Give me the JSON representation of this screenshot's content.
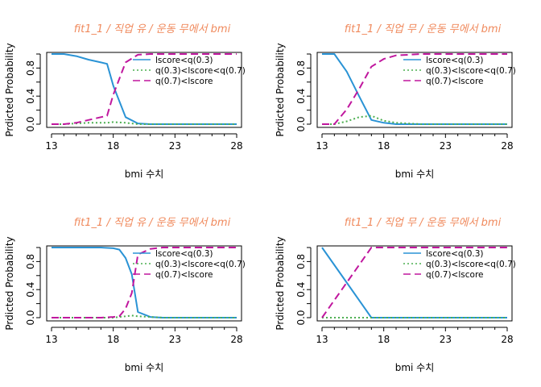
{
  "chart_data": [
    {
      "type": "line",
      "title": "fit1_1 / 직업 유 / 운동 무에서 bmi",
      "xlabel": "bmi 수치",
      "ylabel": "Prdicted  Probability",
      "xlim": [
        13,
        28
      ],
      "ylim": [
        0,
        1
      ],
      "xticks": [
        13,
        18,
        23,
        28
      ],
      "yticks": [
        0.0,
        0.4,
        0.8
      ],
      "legend_position": "top-right",
      "series": [
        {
          "name": "lscore<q(0.3)",
          "color": "#2a93d5",
          "dash": "solid",
          "x": [
            13,
            14,
            15,
            16,
            17,
            17.5,
            18,
            19,
            20,
            21,
            22,
            23,
            24,
            25,
            26,
            27,
            28
          ],
          "y": [
            1.0,
            1.0,
            0.97,
            0.92,
            0.88,
            0.86,
            0.55,
            0.1,
            0.01,
            0.0,
            0.0,
            0.0,
            0.0,
            0.0,
            0.0,
            0.0,
            0.0
          ]
        },
        {
          "name": "q(0.3)<lscore<q(0.7)",
          "color": "#4caf50",
          "dash": "dotted",
          "x": [
            13,
            14,
            15,
            16,
            17,
            17.5,
            18,
            19,
            20,
            21,
            22,
            23,
            24,
            25,
            26,
            27,
            28
          ],
          "y": [
            0.0,
            0.0,
            0.01,
            0.02,
            0.02,
            0.02,
            0.03,
            0.02,
            0.0,
            0.0,
            0.0,
            0.0,
            0.0,
            0.0,
            0.0,
            0.0,
            0.0
          ]
        },
        {
          "name": "q(0.7)<lscore",
          "color": "#c0179e",
          "dash": "dashed",
          "x": [
            13,
            14,
            15,
            16,
            17,
            17.5,
            18,
            19,
            20,
            21,
            22,
            23,
            24,
            25,
            26,
            27,
            28
          ],
          "y": [
            0.0,
            0.0,
            0.02,
            0.06,
            0.1,
            0.12,
            0.42,
            0.88,
            0.99,
            1.0,
            1.0,
            1.0,
            1.0,
            1.0,
            1.0,
            1.0,
            1.0
          ]
        }
      ]
    },
    {
      "type": "line",
      "title": "fit1_1 / 직업 무 / 운동 무에서 bmi",
      "xlabel": "bmi 수치",
      "ylabel": "Prdicted  Probability",
      "xlim": [
        13,
        28
      ],
      "ylim": [
        0,
        1
      ],
      "xticks": [
        13,
        18,
        23,
        28
      ],
      "yticks": [
        0.0,
        0.4,
        0.8
      ],
      "legend_position": "top-right",
      "series": [
        {
          "name": "lscore<q(0.3)",
          "color": "#2a93d5",
          "dash": "solid",
          "x": [
            13,
            14,
            15,
            16,
            17,
            18,
            19,
            20,
            21,
            22,
            23,
            24,
            25,
            26,
            27,
            28
          ],
          "y": [
            1.0,
            1.0,
            0.75,
            0.4,
            0.06,
            0.02,
            0.0,
            0.0,
            0.0,
            0.0,
            0.0,
            0.0,
            0.0,
            0.0,
            0.0,
            0.0
          ]
        },
        {
          "name": "q(0.3)<lscore<q(0.7)",
          "color": "#4caf50",
          "dash": "dotted",
          "x": [
            13,
            14,
            15,
            16,
            17,
            18,
            19,
            20,
            21,
            22,
            23,
            24,
            25,
            26,
            27,
            28
          ],
          "y": [
            0.0,
            0.0,
            0.04,
            0.1,
            0.12,
            0.05,
            0.02,
            0.01,
            0.0,
            0.0,
            0.0,
            0.0,
            0.0,
            0.0,
            0.0,
            0.0
          ]
        },
        {
          "name": "q(0.7)<lscore",
          "color": "#c0179e",
          "dash": "dashed",
          "x": [
            13,
            14,
            15,
            16,
            17,
            18,
            19,
            20,
            21,
            22,
            23,
            24,
            25,
            26,
            27,
            28
          ],
          "y": [
            0.0,
            0.0,
            0.21,
            0.5,
            0.82,
            0.93,
            0.98,
            0.99,
            1.0,
            1.0,
            1.0,
            1.0,
            1.0,
            1.0,
            1.0,
            1.0
          ]
        }
      ]
    },
    {
      "type": "line",
      "title": "fit1_1 / 직업 유 / 운동 무에서 bmi",
      "xlabel": "bmi 수치",
      "ylabel": "Prdicted  Probability",
      "xlim": [
        13,
        28
      ],
      "ylim": [
        0,
        1
      ],
      "xticks": [
        13,
        18,
        23,
        28
      ],
      "yticks": [
        0.0,
        0.4,
        0.8
      ],
      "legend_position": "top-right",
      "series": [
        {
          "name": "lscore<q(0.3)",
          "color": "#2a93d5",
          "dash": "solid",
          "x": [
            13,
            14,
            15,
            16,
            17,
            18,
            18.5,
            19,
            19.5,
            20,
            21,
            22,
            23,
            24,
            25,
            26,
            27,
            28
          ],
          "y": [
            1.0,
            1.0,
            1.0,
            1.0,
            1.0,
            0.99,
            0.97,
            0.85,
            0.62,
            0.08,
            0.01,
            0.0,
            0.0,
            0.0,
            0.0,
            0.0,
            0.0,
            0.0
          ]
        },
        {
          "name": "q(0.3)<lscore<q(0.7)",
          "color": "#4caf50",
          "dash": "dotted",
          "x": [
            13,
            14,
            15,
            16,
            17,
            18,
            18.5,
            19,
            19.5,
            20,
            21,
            22,
            23,
            24,
            25,
            26,
            27,
            28
          ],
          "y": [
            0.0,
            0.0,
            0.0,
            0.0,
            0.0,
            0.0,
            0.01,
            0.02,
            0.03,
            0.02,
            0.01,
            0.0,
            0.0,
            0.0,
            0.0,
            0.0,
            0.0,
            0.0
          ]
        },
        {
          "name": "q(0.7)<lscore",
          "color": "#c0179e",
          "dash": "dashed",
          "x": [
            13,
            14,
            15,
            16,
            17,
            18,
            18.5,
            19,
            19.5,
            20,
            21,
            22,
            23,
            24,
            25,
            26,
            27,
            28
          ],
          "y": [
            0.0,
            0.0,
            0.0,
            0.0,
            0.0,
            0.01,
            0.02,
            0.13,
            0.35,
            0.9,
            0.98,
            1.0,
            1.0,
            1.0,
            1.0,
            1.0,
            1.0,
            1.0
          ]
        }
      ]
    },
    {
      "type": "line",
      "title": "fit1_1 / 직업 무 / 운동 무에서 bmi",
      "xlabel": "bmi 수치",
      "ylabel": "Prdicted  Probability",
      "xlim": [
        13,
        28
      ],
      "ylim": [
        0,
        1
      ],
      "xticks": [
        13,
        18,
        23,
        28
      ],
      "yticks": [
        0.0,
        0.4,
        0.8
      ],
      "legend_position": "top-right",
      "series": [
        {
          "name": "lscore<q(0.3)",
          "color": "#2a93d5",
          "dash": "solid",
          "x": [
            13,
            15,
            17,
            18,
            19,
            20,
            21,
            22,
            23,
            24,
            25,
            26,
            27,
            28
          ],
          "y": [
            1.0,
            0.5,
            0.0,
            0.0,
            0.0,
            0.0,
            0.0,
            0.0,
            0.0,
            0.0,
            0.0,
            0.0,
            0.0,
            0.0
          ]
        },
        {
          "name": "q(0.3)<lscore<q(0.7)",
          "color": "#4caf50",
          "dash": "dotted",
          "x": [
            13,
            15,
            17,
            18,
            19,
            20,
            21,
            22,
            23,
            24,
            25,
            26,
            27,
            28
          ],
          "y": [
            0.0,
            0.0,
            0.0,
            0.0,
            0.0,
            0.0,
            0.0,
            0.0,
            0.0,
            0.0,
            0.0,
            0.0,
            0.0,
            0.0
          ]
        },
        {
          "name": "q(0.7)<lscore",
          "color": "#c0179e",
          "dash": "dashed",
          "x": [
            13,
            15,
            17,
            18,
            19,
            20,
            21,
            22,
            23,
            24,
            25,
            26,
            27,
            28
          ],
          "y": [
            0.0,
            0.5,
            1.0,
            1.0,
            1.0,
            1.0,
            1.0,
            1.0,
            1.0,
            1.0,
            1.0,
            1.0,
            1.0,
            1.0
          ]
        }
      ]
    }
  ]
}
